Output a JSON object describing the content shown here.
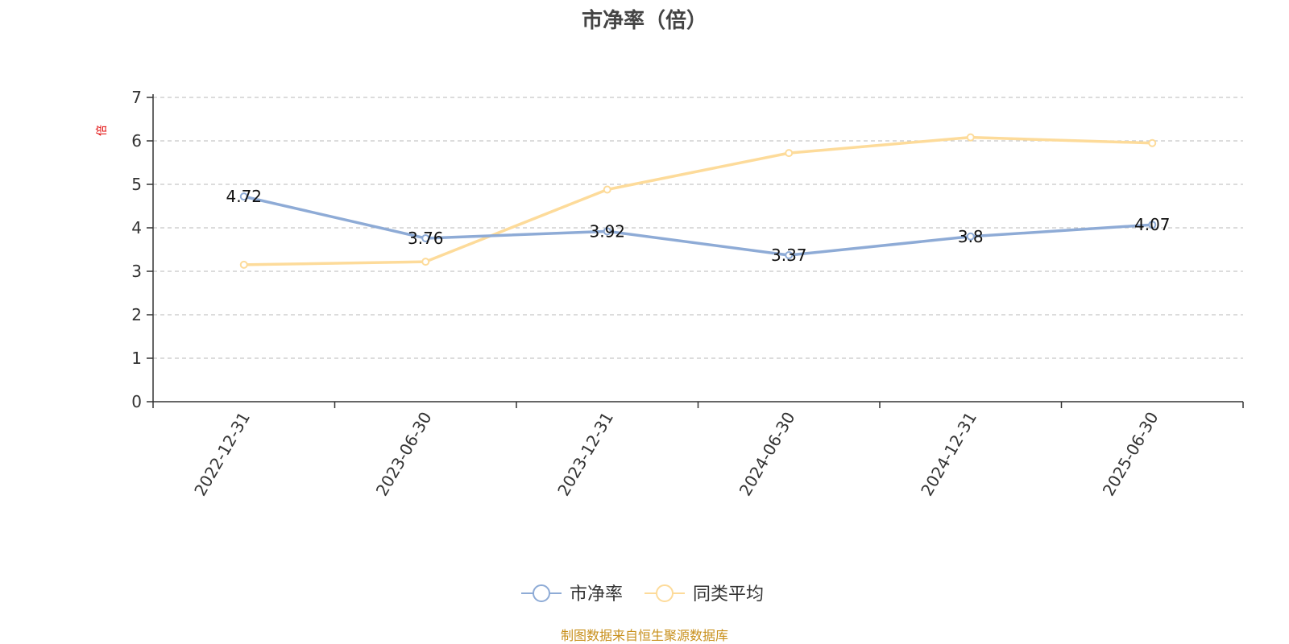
{
  "chart_data": {
    "type": "line",
    "title": "市净率（倍）",
    "ylabel": "倍",
    "xlabel": "",
    "x": [
      "2022-12-31",
      "2023-06-30",
      "2023-12-31",
      "2024-06-30",
      "2024-12-31",
      "2025-06-30"
    ],
    "ylim": [
      0,
      7
    ],
    "yticks": [
      0,
      1,
      2,
      3,
      4,
      5,
      6,
      7
    ],
    "grid": true,
    "legend_position": "bottom-center",
    "series": [
      {
        "name": "市净率",
        "values": [
          4.72,
          3.76,
          3.92,
          3.37,
          3.8,
          4.07
        ],
        "color": "#8eabd6",
        "labels_shown": true
      },
      {
        "name": "同类平均",
        "values": [
          3.15,
          3.22,
          4.88,
          5.72,
          6.08,
          5.95
        ],
        "color": "#fddb9a",
        "labels_shown": false
      }
    ]
  },
  "source_note": "制图数据来自恒生聚源数据库"
}
